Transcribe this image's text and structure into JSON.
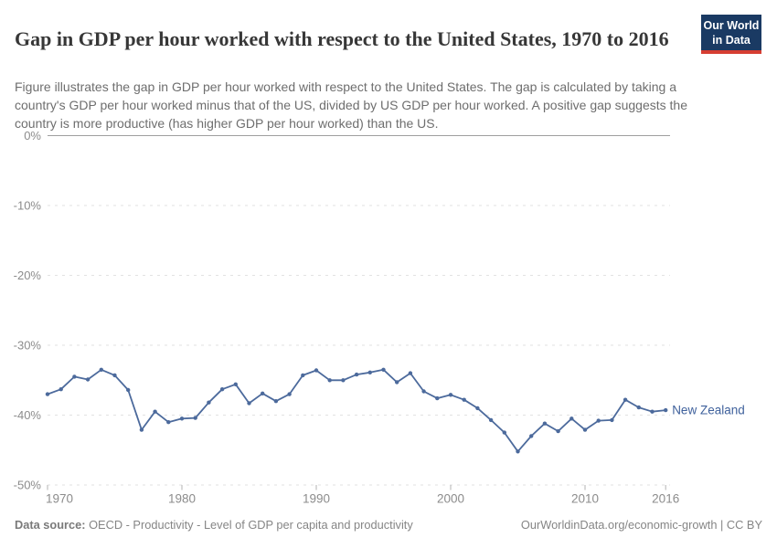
{
  "header": {
    "title": "Gap in GDP per hour worked with respect to the United States, 1970 to 2016",
    "logo": {
      "line1": "Our World",
      "line2": "in Data",
      "bg_color": "#1a3a63",
      "stripe_color": "#d63e32"
    }
  },
  "subtitle": "Figure illustrates the gap in GDP per hour worked with respect to the United States. The gap is calculated by taking a country's GDP per hour worked minus that of the US, divided by US GDP per hour worked. A positive gap suggests the country is more productive (has higher GDP per hour worked) than the US.",
  "chart_data": {
    "type": "line",
    "title": "Gap in GDP per hour worked with respect to the United States, 1970 to 2016",
    "xlabel": "",
    "ylabel": "",
    "xlim": [
      1970,
      2016
    ],
    "ylim": [
      -50,
      0
    ],
    "grid": "horizontal dashed, solid line at 0%",
    "legend": "label at end of line",
    "x_ticks": [
      {
        "value": 1970,
        "label": "1970"
      },
      {
        "value": 1980,
        "label": "1980"
      },
      {
        "value": 1990,
        "label": "1990"
      },
      {
        "value": 2000,
        "label": "2000"
      },
      {
        "value": 2010,
        "label": "2010"
      },
      {
        "value": 2016,
        "label": "2016"
      }
    ],
    "y_ticks": [
      {
        "value": 0,
        "label": "0%"
      },
      {
        "value": -10,
        "label": "-10%"
      },
      {
        "value": -20,
        "label": "-20%"
      },
      {
        "value": -30,
        "label": "-30%"
      },
      {
        "value": -40,
        "label": "-40%"
      },
      {
        "value": -50,
        "label": "-50%"
      }
    ],
    "series": [
      {
        "name": "New Zealand",
        "color": "#4c6a9c",
        "label_color": "#3f619c",
        "years": [
          1970,
          1971,
          1972,
          1973,
          1974,
          1975,
          1976,
          1977,
          1978,
          1979,
          1980,
          1981,
          1982,
          1983,
          1984,
          1985,
          1986,
          1987,
          1988,
          1989,
          1990,
          1991,
          1992,
          1993,
          1994,
          1995,
          1996,
          1997,
          1998,
          1999,
          2000,
          2001,
          2002,
          2003,
          2004,
          2005,
          2006,
          2007,
          2008,
          2009,
          2010,
          2011,
          2012,
          2013,
          2014,
          2015,
          2016
        ],
        "values": [
          -37.0,
          -36.3,
          -34.5,
          -34.9,
          -33.5,
          -34.3,
          -36.4,
          -42.1,
          -39.5,
          -41.0,
          -40.5,
          -40.4,
          -38.2,
          -36.3,
          -35.6,
          -38.3,
          -36.9,
          -38.0,
          -37.0,
          -34.3,
          -33.6,
          -35.0,
          -35.0,
          -34.2,
          -33.9,
          -33.5,
          -35.3,
          -34.0,
          -36.6,
          -37.6,
          -37.1,
          -37.8,
          -39.0,
          -40.7,
          -42.5,
          -45.2,
          -43.0,
          -41.2,
          -42.3,
          -40.5,
          -42.1,
          -40.8,
          -40.7,
          -37.8,
          -38.9,
          -39.5,
          -39.3
        ]
      }
    ]
  },
  "footer": {
    "datasource_label": "Data source:",
    "datasource": " OECD - Productivity - Level of GDP per capita and productivity",
    "credit": "OurWorldinData.org/economic-growth | CC BY"
  }
}
